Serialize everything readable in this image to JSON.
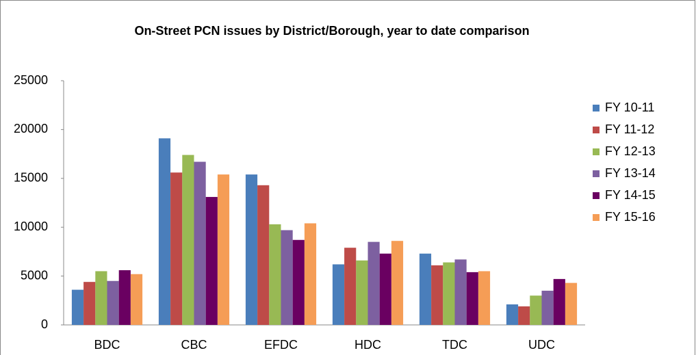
{
  "chart_data": {
    "type": "bar",
    "title": "On-Street PCN issues by District/Borough, year to date comparison",
    "categories": [
      "BDC",
      "CBC",
      "EFDC",
      "HDC",
      "TDC",
      "UDC"
    ],
    "series": [
      {
        "name": "FY 10-11",
        "color": "#4a7ebb",
        "values": [
          3600,
          19100,
          15400,
          6200,
          7300,
          2100
        ]
      },
      {
        "name": "FY 11-12",
        "color": "#be4b48",
        "values": [
          4400,
          15600,
          14300,
          7900,
          6100,
          1900
        ]
      },
      {
        "name": "FY 12-13",
        "color": "#98b954",
        "values": [
          5500,
          17400,
          10300,
          6600,
          6400,
          3000
        ]
      },
      {
        "name": "FY 13-14",
        "color": "#7d60a0",
        "values": [
          4500,
          16700,
          9700,
          8500,
          6700,
          3500
        ]
      },
      {
        "name": "FY 14-15",
        "color": "#6a0061",
        "values": [
          5600,
          13100,
          8700,
          7300,
          5400,
          4700
        ]
      },
      {
        "name": "FY 15-16",
        "color": "#f59d56",
        "values": [
          5200,
          15400,
          10400,
          8600,
          5500,
          4300
        ]
      }
    ],
    "ylim": [
      0,
      25000
    ],
    "yticks": [
      0,
      5000,
      10000,
      15000,
      20000,
      25000
    ],
    "grid": false,
    "legend": "right"
  }
}
